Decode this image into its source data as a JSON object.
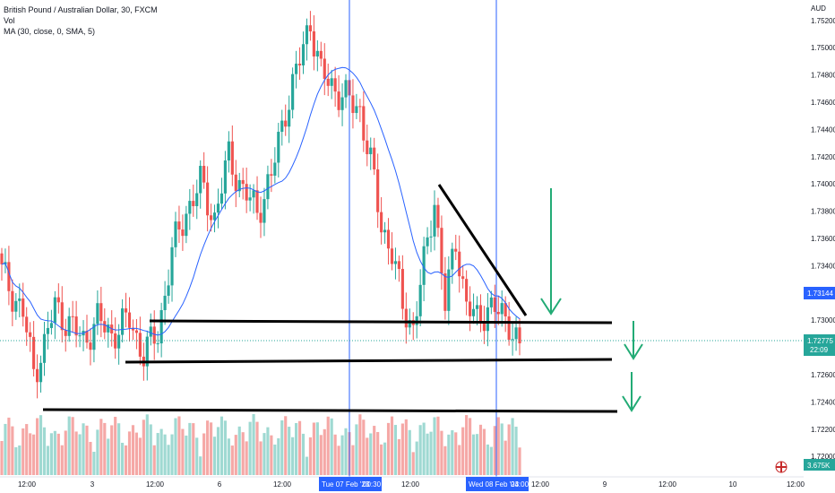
{
  "legend": {
    "symbol_line": "British Pound / Australian Dollar, 30, FXCM",
    "vol_label": "Vol",
    "ma_label": "MA (30, close, 0, SMA, 5)"
  },
  "colors": {
    "up": "#26a69a",
    "down": "#ef5350",
    "vol_up": "#9fd9d2",
    "vol_down": "#f5a8a6",
    "ma": "#2962ff",
    "vline": "#2962ff",
    "arrow": "#22ab75",
    "price_label": "#2962ff",
    "last_label": "#26a69a",
    "vol_badge": "#26a69a",
    "drawing": "#000000"
  },
  "y_axis": {
    "currency": "AUD",
    "ticks": [
      "1.75200",
      "1.75000",
      "1.74800",
      "1.74600",
      "1.74400",
      "1.74200",
      "1.74000",
      "1.73800",
      "1.73600",
      "1.73400",
      "1.73200",
      "1.73000",
      "1.72800",
      "1.72600",
      "1.72400",
      "1.72200",
      "1.72000"
    ],
    "price_label": "1.73144",
    "last_price": "1.72775",
    "countdown": "22:09",
    "volume_label": "3.675K"
  },
  "x_axis": {
    "ticks": [
      "12:00",
      "3",
      "12:00",
      "6",
      "12:00",
      "12:00",
      "12:00",
      "9",
      "12:00",
      "10",
      "12:00"
    ],
    "highlights": [
      "Tue 07 Feb '23",
      "00:30",
      "Wed 08 Feb '23",
      "04:00"
    ]
  },
  "chart_data": {
    "type": "candlestick",
    "title": "British Pound / Australian Dollar, 30, FXCM",
    "ylim": [
      1.7185,
      1.7535
    ],
    "indicator": "MA (30, close, 0, SMA, 5)",
    "anchors": [
      [
        0,
        1.7335
      ],
      [
        6,
        1.7305
      ],
      [
        9,
        1.7262
      ],
      [
        12,
        1.7282
      ],
      [
        15,
        1.731
      ],
      [
        19,
        1.7297
      ],
      [
        23,
        1.7285
      ],
      [
        27,
        1.73
      ],
      [
        31,
        1.729
      ],
      [
        36,
        1.73
      ],
      [
        40,
        1.7275
      ],
      [
        44,
        1.729
      ],
      [
        48,
        1.735
      ],
      [
        52,
        1.738
      ],
      [
        56,
        1.74
      ],
      [
        60,
        1.7375
      ],
      [
        64,
        1.742
      ],
      [
        68,
        1.7395
      ],
      [
        72,
        1.738
      ],
      [
        76,
        1.7405
      ],
      [
        80,
        1.7455
      ],
      [
        84,
        1.749
      ],
      [
        87,
        1.752
      ],
      [
        90,
        1.748
      ],
      [
        94,
        1.747
      ],
      [
        98,
        1.746
      ],
      [
        101,
        1.7455
      ],
      [
        104,
        1.7415
      ],
      [
        107,
        1.737
      ],
      [
        110,
        1.735
      ],
      [
        113,
        1.731
      ],
      [
        116,
        1.7295
      ],
      [
        119,
        1.734
      ],
      [
        122,
        1.739
      ],
      [
        125,
        1.731
      ],
      [
        128,
        1.736
      ],
      [
        131,
        1.731
      ],
      [
        134,
        1.73
      ],
      [
        137,
        1.731
      ],
      [
        140,
        1.7305
      ],
      [
        143,
        1.73
      ],
      [
        145,
        1.7285
      ],
      [
        146,
        1.7278
      ]
    ]
  }
}
